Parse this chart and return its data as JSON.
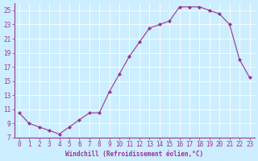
{
  "x": [
    0,
    1,
    2,
    3,
    4,
    5,
    6,
    7,
    8,
    9,
    10,
    11,
    12,
    13,
    14,
    15,
    16,
    17,
    18,
    19,
    20,
    21,
    22,
    23
  ],
  "y": [
    10.5,
    9.0,
    8.5,
    8.0,
    7.5,
    8.5,
    9.5,
    10.5,
    10.5,
    13.5,
    16.0,
    18.5,
    20.5,
    22.5,
    23.0,
    23.5,
    25.5,
    25.5,
    25.5,
    25.0,
    24.5,
    23.0,
    18.0,
    15.5
  ],
  "line_color": "#993399",
  "marker": "D",
  "marker_size": 2.0,
  "marker_edge_width": 0.5,
  "linewidth": 0.8,
  "bg_color": "#cceeff",
  "grid_color": "#aaddcc",
  "xlabel": "Windchill (Refroidissement éolien,°C)",
  "xlabel_color": "#993399",
  "tick_color": "#993399",
  "tick_fontsize": 5.5,
  "xlabel_fontsize": 5.5,
  "ylim": [
    7,
    26
  ],
  "yticks": [
    7,
    9,
    11,
    13,
    15,
    17,
    19,
    21,
    23,
    25
  ],
  "xlim": [
    -0.5,
    23.5
  ],
  "xticks": [
    0,
    1,
    2,
    3,
    4,
    5,
    6,
    7,
    8,
    9,
    10,
    11,
    12,
    13,
    14,
    15,
    16,
    17,
    18,
    19,
    20,
    21,
    22,
    23
  ]
}
